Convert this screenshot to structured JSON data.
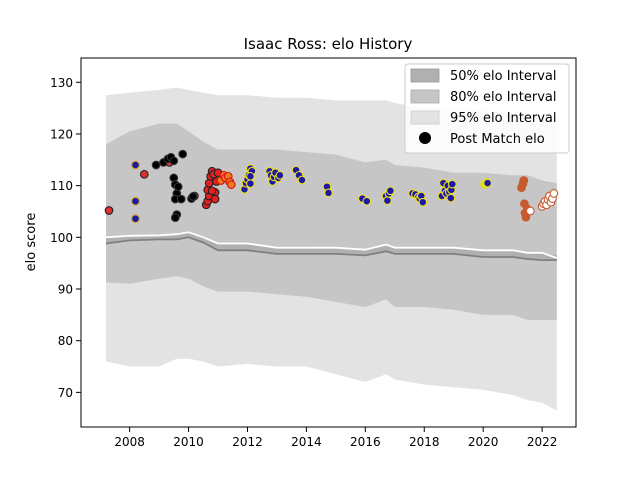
{
  "chart_data": {
    "type": "scatter",
    "title": "Isaac Ross: elo History",
    "xlabel": "",
    "ylabel": "elo score",
    "xlim": [
      2006.35,
      2023.15
    ],
    "ylim": [
      63.3,
      134.7
    ],
    "x_ticks": [
      2008,
      2010,
      2012,
      2014,
      2016,
      2018,
      2020,
      2022
    ],
    "y_ticks": [
      70,
      80,
      90,
      100,
      110,
      120,
      130
    ],
    "grid": false,
    "legend_position": "top-right",
    "legend": [
      {
        "label": "50% elo Interval",
        "kind": "band",
        "color": "#b0b0b0"
      },
      {
        "label": "80% elo Interval",
        "kind": "band",
        "color": "#c6c6c6"
      },
      {
        "label": "95% elo Interval",
        "kind": "band",
        "color": "#e3e3e3"
      },
      {
        "label": "Post Match elo",
        "kind": "point",
        "color": "#000000"
      }
    ],
    "bands": {
      "x": [
        2007.2,
        2008.0,
        2009.0,
        2009.6,
        2010.0,
        2010.5,
        2011.0,
        2012.0,
        2013.0,
        2014.0,
        2015.0,
        2016.0,
        2016.7,
        2017.0,
        2018.0,
        2019.0,
        2020.0,
        2021.0,
        2021.5,
        2022.0,
        2022.5
      ],
      "mean": [
        100.0,
        100.3,
        100.4,
        100.6,
        101.0,
        100.0,
        98.8,
        98.8,
        98.0,
        98.0,
        98.0,
        97.6,
        98.6,
        98.0,
        98.0,
        98.0,
        97.5,
        97.5,
        97.0,
        97.0,
        96.0
      ],
      "p50_lo": [
        98.8,
        99.4,
        99.6,
        99.6,
        100.0,
        99.0,
        97.5,
        97.5,
        96.8,
        96.8,
        96.8,
        96.5,
        97.3,
        96.8,
        96.8,
        96.8,
        96.2,
        96.2,
        95.8,
        95.6,
        95.6
      ],
      "p50_hi": [
        100.0,
        100.4,
        100.6,
        100.8,
        101.2,
        100.2,
        98.8,
        98.8,
        98.2,
        98.2,
        98.1,
        97.6,
        98.6,
        98.1,
        98.1,
        98.0,
        97.6,
        97.6,
        97.1,
        97.0,
        96.5
      ],
      "p80_lo": [
        91.3,
        91.0,
        92.0,
        92.5,
        92.0,
        90.5,
        89.5,
        89.5,
        89.0,
        88.5,
        87.5,
        86.5,
        88.0,
        86.5,
        86.5,
        86.0,
        85.0,
        85.0,
        84.0,
        84.0,
        84.0
      ],
      "p80_hi": [
        118.0,
        120.5,
        122.0,
        122.0,
        120.5,
        118.5,
        117.0,
        117.0,
        117.0,
        116.5,
        116.0,
        114.5,
        115.0,
        114.0,
        113.5,
        112.5,
        112.5,
        112.0,
        112.0,
        111.0,
        110.5
      ],
      "p95_lo": [
        76.0,
        75.0,
        75.0,
        76.5,
        76.5,
        76.0,
        75.0,
        75.5,
        75.0,
        75.0,
        73.5,
        72.0,
        73.5,
        72.5,
        71.5,
        71.0,
        70.5,
        69.5,
        68.5,
        68.0,
        66.5
      ],
      "p95_hi": [
        127.5,
        128.0,
        128.5,
        129.0,
        128.5,
        128.0,
        127.5,
        127.5,
        127.0,
        127.0,
        126.5,
        126.5,
        126.5,
        126.0,
        125.0,
        125.0,
        124.5,
        124.0,
        124.0,
        123.5,
        123.5
      ]
    },
    "point_series": [
      {
        "fill": "#e03030",
        "edge": "#222222",
        "points": [
          [
            2007.3,
            105.2
          ],
          [
            2008.5,
            112.2
          ],
          [
            2009.3,
            114.8
          ],
          [
            2009.35,
            114.5
          ],
          [
            2010.2,
            108.0
          ]
        ]
      },
      {
        "fill": "#1a1aa6",
        "edge": "#d4a020",
        "points": [
          [
            2008.2,
            114.0
          ],
          [
            2008.2,
            107.0
          ],
          [
            2008.2,
            103.6
          ]
        ]
      },
      {
        "fill": "#000000",
        "edge": "#333333",
        "points": [
          [
            2008.9,
            114.0
          ],
          [
            2009.15,
            114.5
          ],
          [
            2009.3,
            115.2
          ],
          [
            2009.4,
            115.5
          ],
          [
            2009.5,
            114.8
          ],
          [
            2009.5,
            111.5
          ],
          [
            2009.55,
            110.2
          ],
          [
            2009.6,
            108.5
          ],
          [
            2009.55,
            107.4
          ],
          [
            2009.65,
            109.8
          ],
          [
            2009.75,
            107.4
          ],
          [
            2009.8,
            116.1
          ],
          [
            2009.6,
            104.4
          ],
          [
            2009.55,
            103.8
          ],
          [
            2010.1,
            107.5
          ],
          [
            2010.15,
            107.9
          ]
        ]
      },
      {
        "fill": "#e52020",
        "edge": "#222222",
        "points": [
          [
            2010.6,
            106.3
          ],
          [
            2010.65,
            107.0
          ],
          [
            2010.7,
            108.0
          ],
          [
            2010.65,
            109.2
          ],
          [
            2010.7,
            110.5
          ],
          [
            2010.75,
            111.8
          ],
          [
            2010.8,
            112.8
          ],
          [
            2010.85,
            112.2
          ],
          [
            2010.9,
            108.7
          ],
          [
            2010.95,
            110.8
          ],
          [
            2011.0,
            112.5
          ],
          [
            2010.9,
            107.4
          ],
          [
            2010.8,
            109.0
          ]
        ]
      },
      {
        "fill": "#f07a20",
        "edge": "#d41010",
        "points": [
          [
            2011.1,
            111.0
          ],
          [
            2011.2,
            112.0
          ],
          [
            2011.25,
            111.5
          ],
          [
            2011.35,
            111.8
          ],
          [
            2011.4,
            110.7
          ],
          [
            2011.45,
            110.2
          ]
        ]
      },
      {
        "fill": "#1a1aa6",
        "edge": "#f0e020",
        "points": [
          [
            2011.9,
            109.3
          ],
          [
            2011.95,
            110.5
          ],
          [
            2012.0,
            111.2
          ],
          [
            2012.05,
            112.0
          ],
          [
            2012.1,
            113.3
          ],
          [
            2012.15,
            112.8
          ],
          [
            2012.1,
            111.8
          ],
          [
            2012.1,
            110.4
          ],
          [
            2012.75,
            112.8
          ],
          [
            2012.8,
            112.0
          ],
          [
            2012.85,
            110.8
          ],
          [
            2012.9,
            111.7
          ],
          [
            2012.95,
            112.5
          ],
          [
            2013.05,
            111.5
          ],
          [
            2013.1,
            112.0
          ],
          [
            2013.65,
            113.0
          ],
          [
            2013.75,
            112.0
          ],
          [
            2013.85,
            111.1
          ],
          [
            2014.7,
            109.8
          ],
          [
            2014.75,
            108.6
          ],
          [
            2015.9,
            107.5
          ],
          [
            2016.05,
            107.0
          ],
          [
            2016.7,
            108.0
          ],
          [
            2016.75,
            107.1
          ],
          [
            2016.8,
            108.5
          ],
          [
            2016.85,
            109.0
          ],
          [
            2017.6,
            108.5
          ],
          [
            2017.7,
            108.3
          ],
          [
            2017.8,
            107.8
          ],
          [
            2017.85,
            107.5
          ],
          [
            2017.9,
            108.0
          ],
          [
            2017.95,
            106.8
          ],
          [
            2018.6,
            108.0
          ],
          [
            2018.65,
            110.5
          ],
          [
            2018.7,
            109.0
          ],
          [
            2018.75,
            108.5
          ],
          [
            2018.8,
            110.0
          ],
          [
            2018.85,
            108.8
          ],
          [
            2018.9,
            107.6
          ],
          [
            2018.92,
            109.2
          ],
          [
            2018.95,
            110.3
          ]
        ]
      },
      {
        "fill": "#e8e000",
        "edge": "#e8e000",
        "points": [
          [
            2020.05,
            110.3
          ],
          [
            2020.12,
            110.6
          ]
        ]
      },
      {
        "fill": "#1a1aa6",
        "edge": "#f0e020",
        "points": [
          [
            2020.15,
            110.5
          ]
        ]
      },
      {
        "fill": "#c85a30",
        "edge": "#c85a30",
        "points": [
          [
            2021.3,
            109.6
          ],
          [
            2021.35,
            110.4
          ],
          [
            2021.38,
            111.0
          ],
          [
            2021.4,
            106.5
          ],
          [
            2021.42,
            104.7
          ],
          [
            2021.45,
            103.9
          ],
          [
            2021.5,
            105.5
          ]
        ]
      },
      {
        "fill": "#ffffff",
        "edge": "#c85a30",
        "points": [
          [
            2021.6,
            105.1
          ],
          [
            2022.0,
            106.0
          ],
          [
            2022.05,
            106.5
          ],
          [
            2022.1,
            107.0
          ],
          [
            2022.15,
            106.3
          ],
          [
            2022.2,
            107.3
          ],
          [
            2022.25,
            108.0
          ],
          [
            2022.3,
            106.8
          ],
          [
            2022.35,
            107.5
          ],
          [
            2022.4,
            108.5
          ]
        ]
      }
    ]
  }
}
